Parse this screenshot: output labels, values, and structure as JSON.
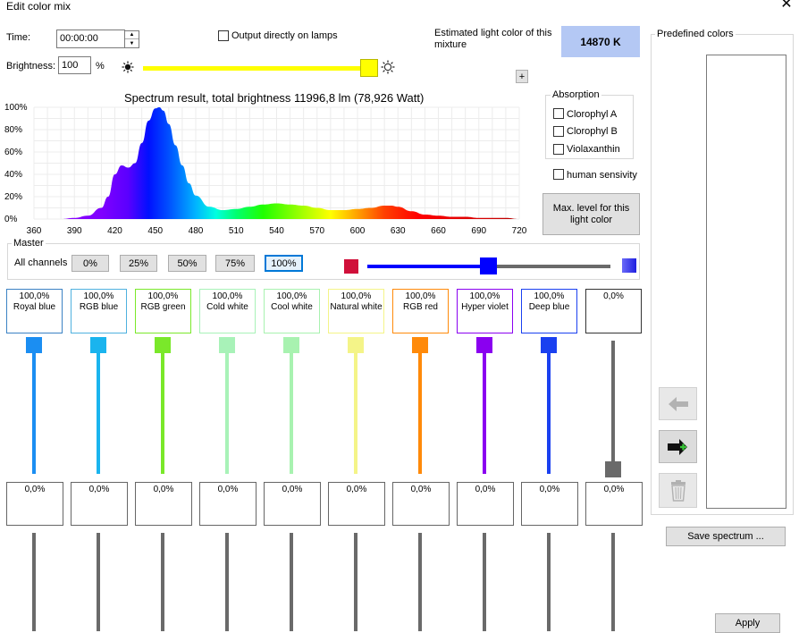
{
  "window": {
    "title": "Edit color mix",
    "close_glyph": "✕"
  },
  "time": {
    "label": "Time:",
    "value": "00:00:00"
  },
  "brightness": {
    "label": "Brightness:",
    "value": "100",
    "unit": "%",
    "level_fraction": 1.0
  },
  "output_directly": {
    "label": "Output directly on lamps",
    "checked": false
  },
  "estimate": {
    "label": "Estimated light color of this mixture",
    "value": "14870 K",
    "swatch_color": "#b4c8f4"
  },
  "plus_button": "+",
  "absorption": {
    "title": "Absorption",
    "items": [
      {
        "label": "Clorophyl A",
        "checked": false
      },
      {
        "label": "Clorophyl B",
        "checked": false
      },
      {
        "label": "Violaxanthin",
        "checked": false
      }
    ]
  },
  "human_sensitivity": {
    "label": "human sensivity",
    "checked": false
  },
  "max_level_button": "Max. level for this light color",
  "chart_data": {
    "type": "area",
    "title": "Spectrum result, total brightness 11996,8 lm (78,926 Watt)",
    "xlabel": "",
    "ylabel": "",
    "xlim": [
      360,
      720
    ],
    "ylim": [
      0,
      100
    ],
    "x_ticks": [
      360,
      390,
      420,
      450,
      480,
      510,
      540,
      570,
      600,
      630,
      660,
      690,
      720
    ],
    "y_ticks": [
      "0%",
      "20%",
      "40%",
      "60%",
      "80%",
      "100%"
    ],
    "grid": true,
    "x": [
      380,
      390,
      400,
      410,
      415,
      420,
      425,
      430,
      435,
      440,
      445,
      450,
      453,
      456,
      460,
      465,
      470,
      475,
      480,
      490,
      500,
      510,
      520,
      530,
      540,
      550,
      560,
      570,
      580,
      590,
      600,
      610,
      620,
      625,
      630,
      640,
      650,
      660,
      670,
      680,
      690,
      700,
      710,
      720
    ],
    "y": [
      0,
      1,
      3,
      10,
      20,
      40,
      48,
      46,
      50,
      68,
      88,
      99,
      100,
      97,
      85,
      66,
      48,
      32,
      21,
      11,
      8,
      9,
      11,
      13,
      14,
      13,
      12,
      10,
      8,
      8,
      9,
      10,
      12,
      12,
      11,
      7,
      4,
      3,
      2,
      2,
      1,
      1,
      1,
      0
    ]
  },
  "master": {
    "title": "Master",
    "all_channels_label": "All channels",
    "presets": [
      "0%",
      "25%",
      "50%",
      "75%",
      "100%"
    ],
    "selected_preset": "100%",
    "slider_fraction": 0.5,
    "left_color": "#d0103a",
    "thumb_color": "#0000ff",
    "right_color": "#2020e0"
  },
  "channels": [
    {
      "name": "Royal blue",
      "value": "100,0%",
      "level": 1.0,
      "color": "#1b8ef2",
      "border": "#3b82c4",
      "low_value": "0,0%"
    },
    {
      "name": "RGB blue",
      "value": "100,0%",
      "level": 1.0,
      "color": "#1ab4ee",
      "border": "#4fb1df",
      "low_value": "0,0%"
    },
    {
      "name": "RGB green",
      "value": "100,0%",
      "level": 1.0,
      "color": "#7ae82a",
      "border": "#7ae82a",
      "low_value": "0,0%"
    },
    {
      "name": "Cold white",
      "value": "100,0%",
      "level": 1.0,
      "color": "#a8f2b8",
      "border": "#a8f2b8",
      "low_value": "0,0%"
    },
    {
      "name": "Cool white",
      "value": "100,0%",
      "level": 1.0,
      "color": "#a8f2b0",
      "border": "#a8f2b0",
      "low_value": "0,0%"
    },
    {
      "name": "Natural white",
      "value": "100,0%",
      "level": 1.0,
      "color": "#f4f488",
      "border": "#f4f488",
      "low_value": "0,0%"
    },
    {
      "name": "RGB red",
      "value": "100,0%",
      "level": 1.0,
      "color": "#ff8a0a",
      "border": "#ff8a0a",
      "low_value": "0,0%"
    },
    {
      "name": "Hyper violet",
      "value": "100,0%",
      "level": 1.0,
      "color": "#8a00f0",
      "border": "#8a00f0",
      "low_value": "0,0%"
    },
    {
      "name": "Deep blue",
      "value": "100,0%",
      "level": 1.0,
      "color": "#1a40f0",
      "border": "#1a40f0",
      "low_value": "0,0%"
    },
    {
      "name": "",
      "value": "0,0%",
      "level": 0.0,
      "color": "#6a6a6a",
      "border": "#333333",
      "low_value": "0,0%"
    }
  ],
  "predefined": {
    "title": "Predefined colors"
  },
  "side_buttons": [
    {
      "icon": "arrow-left-icon",
      "enabled": false
    },
    {
      "icon": "arrow-right-add-icon",
      "enabled": true
    },
    {
      "icon": "trash-icon",
      "enabled": false
    }
  ],
  "save_spectrum_button": "Save spectrum ...",
  "apply_button": "Apply"
}
